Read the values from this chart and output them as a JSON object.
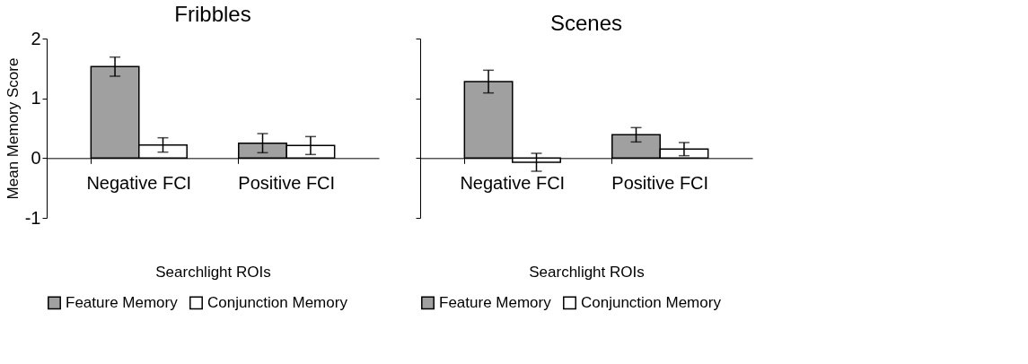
{
  "chart_data": [
    {
      "type": "bar",
      "title": "Fribbles",
      "xlabel": "Searchlight ROIs",
      "ylabel": "Mean Memory Score",
      "categories": [
        "Negative FCI",
        "Positive FCI"
      ],
      "series": [
        {
          "name": "Feature Memory",
          "color": "#a0a0a0",
          "values": [
            1.53,
            0.25
          ],
          "errors": [
            0.16,
            0.16
          ]
        },
        {
          "name": "Conjunction Memory",
          "color": "#ffffff",
          "values": [
            0.22,
            0.21
          ],
          "errors": [
            0.12,
            0.15
          ]
        }
      ],
      "ylim": [
        -1,
        2
      ],
      "yticks": [
        -1,
        0,
        1,
        2
      ],
      "grid": false,
      "legend": "bottom"
    },
    {
      "type": "bar",
      "title": "Scenes",
      "xlabel": "Searchlight ROIs",
      "categories": [
        "Negative FCI",
        "Positive FCI"
      ],
      "series": [
        {
          "name": "Feature Memory",
          "color": "#a0a0a0",
          "values": [
            1.28,
            0.39
          ],
          "errors": [
            0.19,
            0.12
          ]
        },
        {
          "name": "Conjunction Memory",
          "color": "#ffffff",
          "values": [
            -0.07,
            0.15
          ],
          "errors": [
            0.15,
            0.11
          ]
        }
      ],
      "ylim": [
        -1,
        2
      ],
      "yticks": [
        -1,
        0,
        1,
        2
      ],
      "tick_labels": "x",
      "grid": false,
      "legend": "bottom"
    }
  ]
}
